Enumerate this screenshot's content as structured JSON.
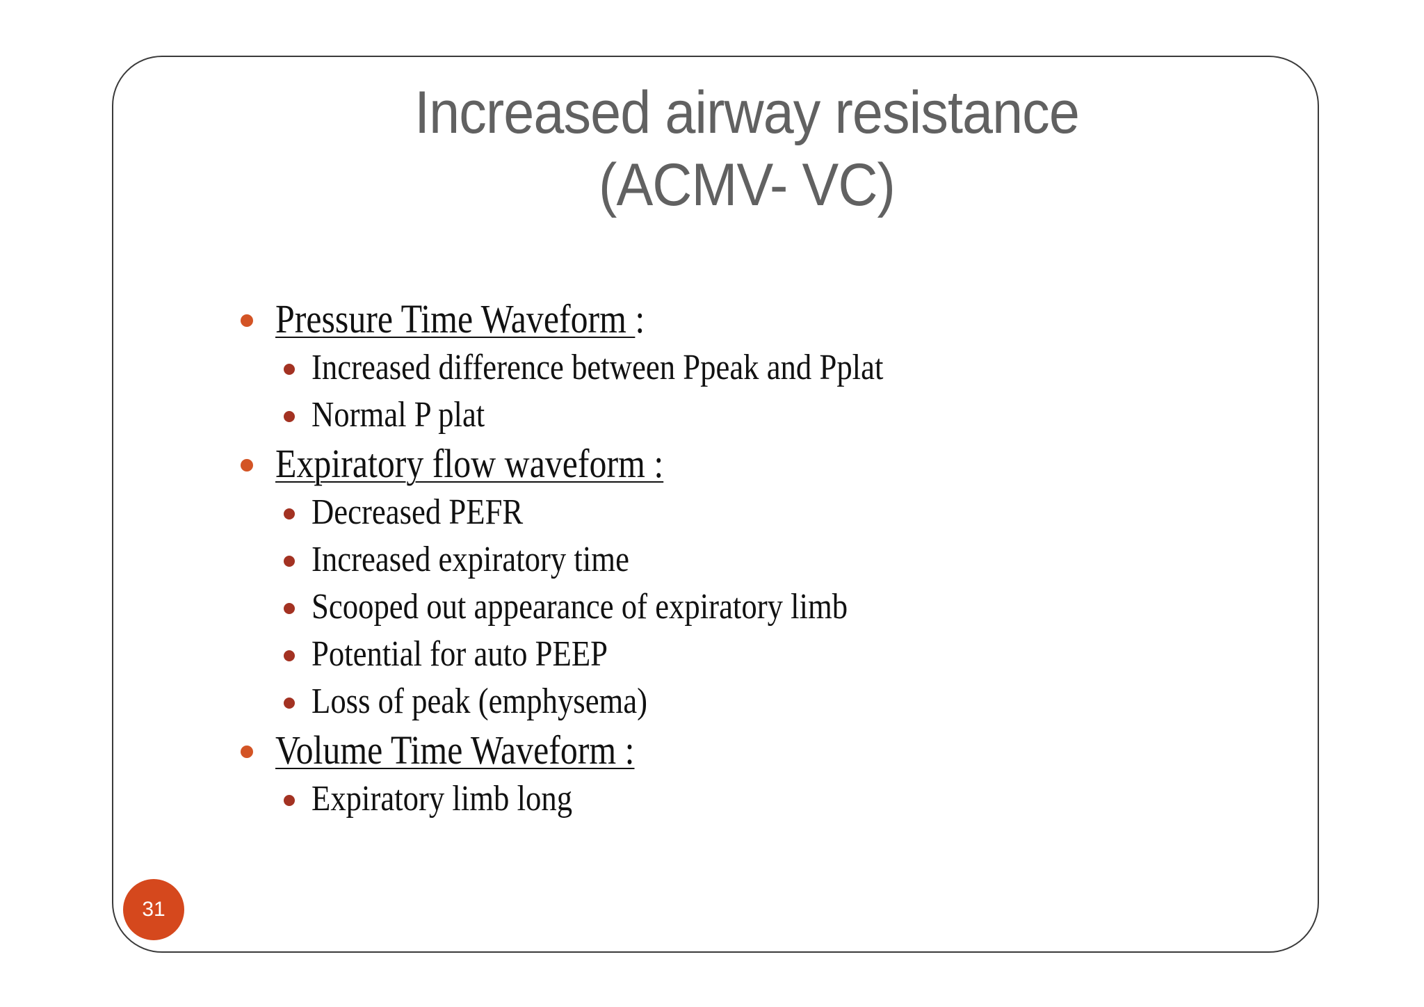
{
  "slide": {
    "title_line1": "Increased airway resistance",
    "title_line2": "(ACMV- VC)",
    "page_number": "31",
    "colors": {
      "title": "#616161",
      "bullet_level1": "#d35425",
      "bullet_level2": "#a33222",
      "badge": "#d5481d"
    }
  },
  "sections": [
    {
      "heading": "Pressure Time Waveform ",
      "suffix": ":",
      "items": [
        "Increased difference between Ppeak and Pplat",
        "Normal P plat"
      ]
    },
    {
      "heading": "Expiratory flow waveform :",
      "suffix": "",
      "items": [
        "Decreased PEFR",
        "Increased expiratory time",
        "Scooped out appearance of expiratory limb",
        "Potential for auto PEEP",
        "Loss of peak (emphysema)"
      ]
    },
    {
      "heading": "Volume Time Waveform :",
      "suffix": "",
      "items": [
        "Expiratory limb long"
      ]
    }
  ]
}
